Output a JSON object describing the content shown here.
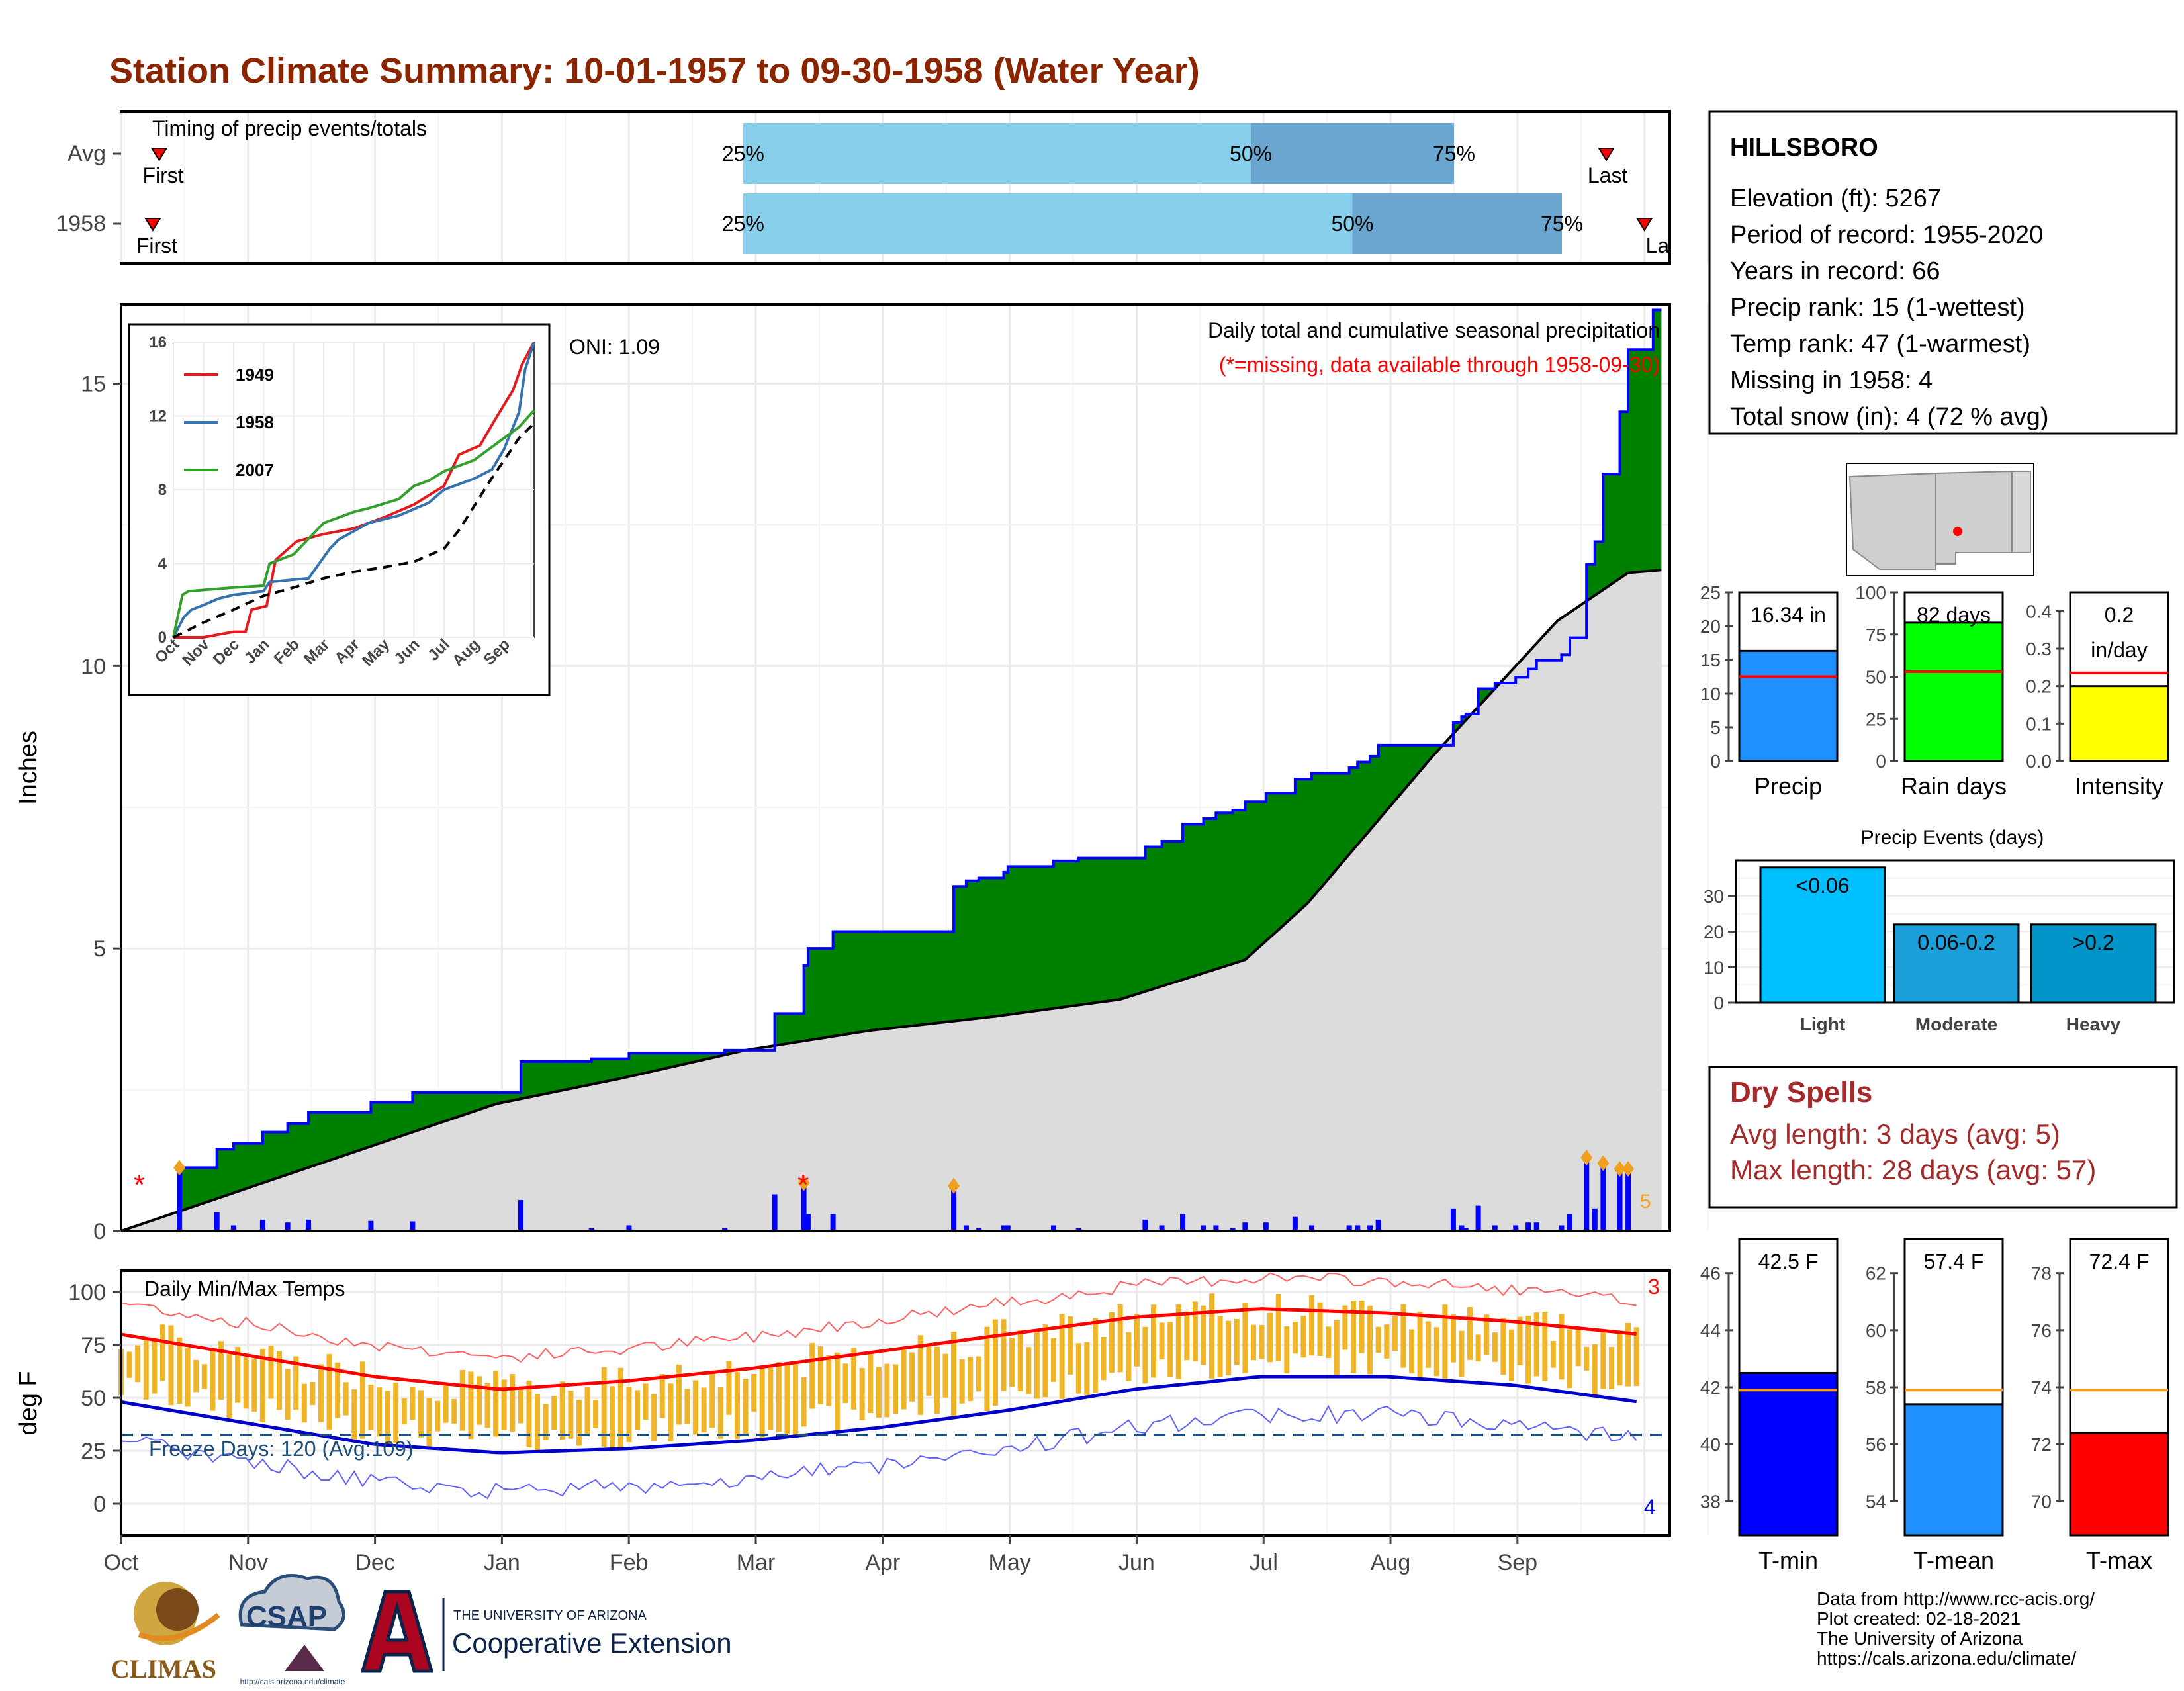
{
  "title": "Station Climate Summary: 10-01-1957 to 09-30-1958 (Water Year)",
  "colors": {
    "title": "#8B2500",
    "green_fill": "#008000",
    "gray_fill": "#dcdcdc",
    "blue_line": "#0000ff",
    "light_blue_bar": "#87ceeb",
    "mid_blue_bar": "#6aa6cf",
    "orange_bar": "#f0b428",
    "red_line": "#ff0000",
    "precip_bar": "#1e90ff",
    "rain_bar": "#00ff00",
    "intensity_bar": "#ffff00",
    "light_bar": "#00bfff",
    "moderate_bar": "#1a9fd9",
    "heavy_bar": "#0095c8",
    "dry_spell_text": "#a52a2a"
  },
  "timing": {
    "label": "Timing of precip events/totals",
    "rows": [
      {
        "name": "Avg",
        "first_label": "First",
        "last_label": "Last",
        "first_month_pos": 0.3,
        "p25_label": "25%",
        "p50_label": "50%",
        "p75_label": "75%",
        "p25": 4.9,
        "p50": 8.9,
        "p75": 10.5,
        "last_month_pos": 11.7
      },
      {
        "name": "1958",
        "first_label": "First",
        "last_label": "La",
        "first_month_pos": 0.25,
        "p25_label": "25%",
        "p50_label": "50%",
        "p75_label": "75%",
        "p25": 4.9,
        "p50": 9.7,
        "p75": 11.35,
        "last_month_pos": 12.0
      }
    ]
  },
  "precip_panel": {
    "ylabel": "Inches",
    "yticks": [
      "0",
      "5",
      "10",
      "15"
    ],
    "ymax": 16.4,
    "header": "Daily total and cumulative seasonal precipitation",
    "subheader": "(*=missing, data available through 1958-09-30)",
    "oni": "ONI: 1.09",
    "count_label": "5",
    "missing_marker": "*"
  },
  "inset": {
    "yticks": [
      "0",
      "4",
      "8",
      "12",
      "16"
    ],
    "xticks": [
      "Oct",
      "Nov",
      "Dec",
      "Jan",
      "Feb",
      "Mar",
      "Apr",
      "May",
      "Jun",
      "Jul",
      "Aug",
      "Sep"
    ],
    "legend": [
      {
        "name": "1949",
        "color": "#e31a1c"
      },
      {
        "name": "1958",
        "color": "#3572b0"
      },
      {
        "name": "2007",
        "color": "#33a02c"
      }
    ]
  },
  "temp_panel": {
    "ylabel": "deg F",
    "yticks": [
      "0",
      "25",
      "50",
      "75",
      "100"
    ],
    "label": "Daily Min/Max Temps",
    "freeze_label": "Freeze Days: 120 (Avg:109)",
    "count_high": "3",
    "count_low": "4"
  },
  "months": [
    "Oct",
    "Nov",
    "Dec",
    "Jan",
    "Feb",
    "Mar",
    "Apr",
    "May",
    "Jun",
    "Jul",
    "Aug",
    "Sep"
  ],
  "station": {
    "name": "HILLSBORO",
    "lines": [
      "Elevation (ft): 5267",
      "Period of record: 1955-2020",
      "Years in record: 66",
      "Precip rank: 15 (1-wettest)",
      "Temp rank: 47 (1-warmest)",
      "Missing in 1958: 4",
      "Total snow (in): 4 (72 % avg)"
    ]
  },
  "mini_bars": [
    {
      "name": "Precip",
      "label": "16.34 in",
      "value": 16.34,
      "avg": 12.5,
      "ymax": 25,
      "yticks": [
        "0",
        "5",
        "10",
        "15",
        "20",
        "25"
      ],
      "tickvals": [
        0,
        5,
        10,
        15,
        20,
        25
      ],
      "color": "#1e90ff"
    },
    {
      "name": "Rain days",
      "label": "82 days",
      "value": 82,
      "avg": 53,
      "ymax": 100,
      "yticks": [
        "0",
        "25",
        "50",
        "75",
        "100"
      ],
      "tickvals": [
        0,
        25,
        50,
        75,
        100
      ],
      "color": "#00ff00"
    },
    {
      "name": "Intensity",
      "label": "0.2",
      "label2": "in/day",
      "value": 0.2,
      "avg": 0.235,
      "ymax": 0.45,
      "yticks": [
        "0.0",
        "0.1",
        "0.2",
        "0.3",
        "0.4"
      ],
      "tickvals": [
        0,
        0.1,
        0.2,
        0.3,
        0.4
      ],
      "color": "#ffff00"
    }
  ],
  "precip_events": {
    "title": "Precip Events (days)",
    "yticks": [
      "0",
      "10",
      "20",
      "30"
    ],
    "tickvals": [
      0,
      10,
      20,
      30
    ],
    "ymax": 40,
    "categories": [
      "Light",
      "Moderate",
      "Heavy"
    ],
    "bar_labels": [
      "<0.06",
      "0.06-0.2",
      ">0.2"
    ],
    "values": [
      38,
      22,
      22
    ],
    "colors": [
      "#00bfff",
      "#1a9fd9",
      "#0095c8"
    ]
  },
  "dry_spells": {
    "title": "Dry Spells",
    "lines": [
      "Avg length: 3 days (avg: 5)",
      "Max length: 28 days (avg: 57)"
    ]
  },
  "temp_bars": [
    {
      "name": "T-min",
      "label": "42.5 F",
      "value": 42.5,
      "avg": 41.9,
      "ymin": 36.8,
      "ymax": 47.2,
      "yticks": [
        "38",
        "40",
        "42",
        "44",
        "46"
      ],
      "tickvals": [
        38,
        40,
        42,
        44,
        46
      ],
      "color": "#0000ff"
    },
    {
      "name": "T-mean",
      "label": "57.4 F",
      "value": 57.4,
      "avg": 57.9,
      "ymin": 52.8,
      "ymax": 63.2,
      "yticks": [
        "54",
        "56",
        "58",
        "60",
        "62"
      ],
      "tickvals": [
        54,
        56,
        58,
        60,
        62
      ],
      "color": "#1e90ff"
    },
    {
      "name": "T-max",
      "label": "72.4 F",
      "value": 72.4,
      "avg": 73.9,
      "ymin": 68.8,
      "ymax": 79.2,
      "yticks": [
        "70",
        "72",
        "74",
        "76",
        "78"
      ],
      "tickvals": [
        70,
        72,
        74,
        76,
        78
      ],
      "color": "#ff0000"
    }
  ],
  "credits": [
    "Data from http://www.rcc-acis.org/",
    "Plot created: 02-18-2021",
    "The University of Arizona",
    "https://cals.arizona.edu/climate/"
  ],
  "logos": {
    "climas": "CLIMAS",
    "csap": "CSAP",
    "csap_url": "http://cals.arizona.edu/climate",
    "ua_small": "THE UNIVERSITY OF ARIZONA",
    "ua_big": "Cooperative Extension"
  },
  "chart_data": {
    "type": "area",
    "title": "Daily total and cumulative seasonal precipitation",
    "ylabel": "Inches",
    "ylim": [
      0,
      16.4
    ],
    "cumulative_1958": {
      "x_day": [
        0,
        14,
        23,
        27,
        34,
        40,
        45,
        60,
        70,
        96,
        113,
        122,
        145,
        157,
        164,
        165,
        171,
        200,
        203,
        206,
        212,
        213,
        224,
        230,
        246,
        250,
        255,
        260,
        263,
        267,
        270,
        275,
        282,
        286,
        295,
        297,
        300,
        302,
        320,
        322,
        323,
        326,
        330,
        335,
        338,
        340,
        346,
        348,
        352,
        354,
        356,
        360,
        362
      ],
      "inches": [
        0,
        1.12,
        1.45,
        1.55,
        1.75,
        1.9,
        2.1,
        2.28,
        2.45,
        3.0,
        3.05,
        3.15,
        3.2,
        3.85,
        4.7,
        5.0,
        5.3,
        6.1,
        6.2,
        6.25,
        6.35,
        6.45,
        6.55,
        6.6,
        6.8,
        6.9,
        7.2,
        7.3,
        7.4,
        7.45,
        7.6,
        7.75,
        8.0,
        8.1,
        8.2,
        8.3,
        8.4,
        8.6,
        9.0,
        9.1,
        9.15,
        9.6,
        9.7,
        9.8,
        9.95,
        10.1,
        10.2,
        10.5,
        11.8,
        12.2,
        13.4,
        14.5,
        15.6
      ]
    },
    "avg_cumulative": {
      "x_day": [
        0,
        30,
        60,
        90,
        120,
        150,
        180,
        210,
        240,
        270,
        285,
        300,
        315,
        330,
        345,
        362
      ],
      "inches": [
        0,
        0.75,
        1.5,
        2.25,
        2.7,
        3.2,
        3.55,
        3.8,
        4.1,
        4.8,
        5.8,
        7.1,
        8.4,
        9.6,
        10.8,
        11.65
      ]
    },
    "temps_1958": {
      "avg_max_F": [
        80,
        70,
        60,
        54,
        58,
        64,
        72,
        80,
        88,
        92,
        90,
        86,
        80
      ],
      "avg_min_F": [
        48,
        38,
        28,
        24,
        26,
        30,
        36,
        44,
        54,
        60,
        60,
        56,
        48
      ],
      "month_index": [
        0,
        1,
        2,
        3,
        4,
        5,
        6,
        7,
        8,
        9,
        10,
        11,
        12
      ]
    }
  }
}
